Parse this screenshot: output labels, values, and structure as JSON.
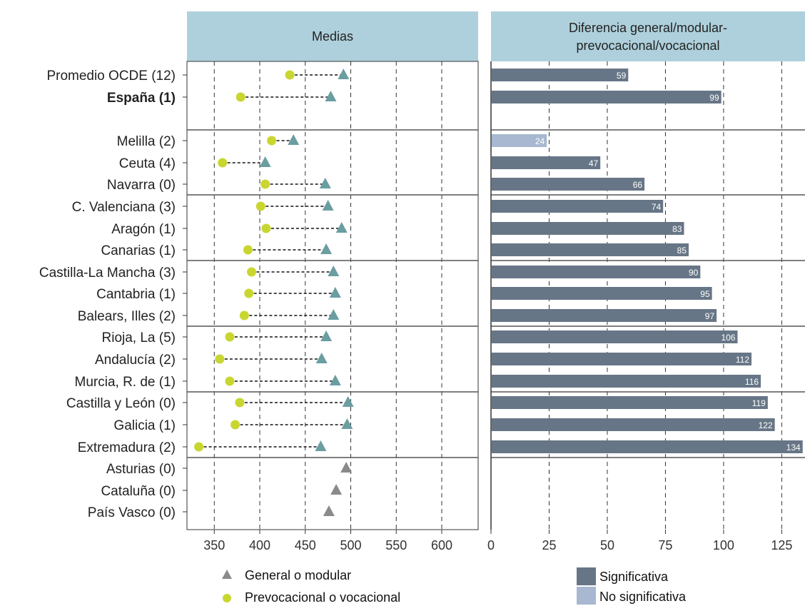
{
  "chart_data": [
    {
      "panel": "left",
      "type": "scatter",
      "title": "Medias",
      "xlim": [
        320,
        640
      ],
      "xticks": [
        "350",
        "400",
        "450",
        "500",
        "550",
        "600"
      ],
      "grid": "vertical-dashed",
      "categories": [
        "Promedio OCDE (12)",
        "España (1)",
        "Melilla (2)",
        "Ceuta (4)",
        "Navarra (0)",
        "C. Valenciana (3)",
        "Aragón (1)",
        "Canarias (1)",
        "Castilla-La Mancha (3)",
        "Cantabria (1)",
        "Balears, Illes (2)",
        "Rioja, La (5)",
        "Andalucía (2)",
        "Murcia, R. de (1)",
        "Castilla y León (0)",
        "Galicia (1)",
        "Extremadura (2)",
        "Asturias (0)",
        "Cataluña (0)",
        "País Vasco (0)"
      ],
      "bold_category": "España (1)",
      "series": [
        {
          "name": "General o modular",
          "marker": "triangle",
          "values": [
            492,
            478,
            437,
            406,
            472,
            475,
            490,
            473,
            481,
            483,
            481,
            473,
            468,
            483,
            497,
            496,
            467,
            495,
            484,
            476
          ]
        },
        {
          "name": "Prevocacional o vocacional",
          "marker": "circle",
          "values": [
            433,
            379,
            413,
            359,
            406,
            401,
            407,
            387,
            391,
            388,
            383,
            367,
            356,
            367,
            378,
            373,
            333,
            null,
            null,
            null
          ]
        }
      ]
    },
    {
      "panel": "right",
      "type": "bar",
      "title": "Diferencia general/modular-prevocacional/vocacional",
      "title_lines": [
        "Diferencia general/modular-",
        "prevocacional/vocacional"
      ],
      "xlim": [
        0,
        135
      ],
      "xticks": [
        "0",
        "25",
        "50",
        "75",
        "100",
        "125"
      ],
      "grid": "vertical-dashed",
      "values": [
        59,
        99,
        24,
        47,
        66,
        74,
        83,
        85,
        90,
        95,
        97,
        106,
        112,
        116,
        119,
        122,
        134,
        null,
        null,
        null
      ],
      "significant": [
        true,
        true,
        false,
        true,
        true,
        true,
        true,
        true,
        true,
        true,
        true,
        true,
        true,
        true,
        true,
        true,
        true,
        null,
        null,
        null
      ],
      "legend": [
        "Significativa",
        "No significativa"
      ]
    }
  ],
  "colors": {
    "strip_bg": "#aed0dc",
    "triangle": "#6a9ea1",
    "triangle_single": "#8a8a8a",
    "circle": "#c9d630",
    "bar_significant": "#677686",
    "bar_not_significant": "#a7b8d0",
    "grid": "#333333",
    "separator": "#555555"
  }
}
